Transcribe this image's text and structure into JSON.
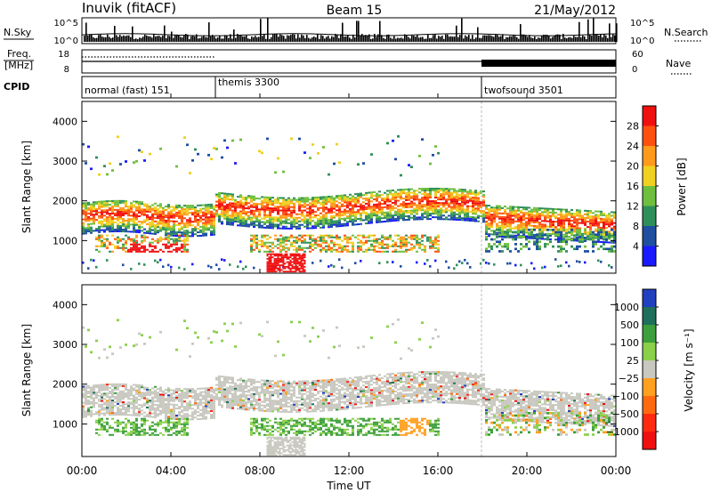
{
  "header": {
    "station": "Inuvik (fitACF)",
    "beam": "Beam 15",
    "date": "21/May/2012"
  },
  "nsky_panel": {
    "left_label": "N.Sky",
    "right_label": "N.Search",
    "left_ticks": [
      "10^5",
      "10^0"
    ],
    "right_ticks": [
      "10^5",
      "10^0"
    ]
  },
  "freq_panel": {
    "left_label_1": "Freq.",
    "left_label_2": "[MHz]",
    "right_label": "Nave",
    "left_ticks": [
      "18",
      "8"
    ],
    "right_ticks": [
      "60",
      "0"
    ]
  },
  "cpid_panel": {
    "label": "CPID",
    "modes": [
      {
        "name": "normal (fast) 151",
        "start_hour": 0
      },
      {
        "name": "themis 3300",
        "start_hour": 6
      },
      {
        "name": "twofsound 3501",
        "start_hour": 18
      }
    ]
  },
  "chart_data": [
    {
      "type": "heatmap",
      "panel": "power",
      "ylabel": "Slant Range [km]",
      "xlabel": "Time UT",
      "x_range_hours": [
        0,
        24
      ],
      "ylim": [
        180,
        4500
      ],
      "yticks": [
        "1000",
        "2000",
        "3000",
        "4000"
      ],
      "colorbar_label": "Power [dB]",
      "colorbar_ticks": [
        "4",
        "8",
        "12",
        "16",
        "20",
        "24",
        "28"
      ],
      "colorbar_colors": [
        "#1a1aff",
        "#1f4fa0",
        "#2f8f5a",
        "#6fbf3f",
        "#f0d020",
        "#ff9a1a",
        "#ff5010",
        "#f01010"
      ]
    },
    {
      "type": "heatmap",
      "panel": "velocity",
      "ylabel": "Slant Range [km]",
      "xlabel": "Time UT",
      "x_range_hours": [
        0,
        24
      ],
      "ylim": [
        180,
        4500
      ],
      "yticks": [
        "1000",
        "2000",
        "3000",
        "4000"
      ],
      "colorbar_label": "Velocity [m s⁻¹]",
      "colorbar_ticks": [
        "1000",
        "500",
        "100",
        "25",
        "−25",
        "−100",
        "−500",
        "−1000"
      ],
      "colorbar_colors": [
        "#2040c0",
        "#1f6f5a",
        "#3c9f3c",
        "#8ad04a",
        "#c8c8c0",
        "#ffa020",
        "#ff6a10",
        "#ff2a10",
        "#f01010"
      ]
    }
  ],
  "time_axis": {
    "ticks": [
      "00:00",
      "04:00",
      "08:00",
      "12:00",
      "16:00",
      "20:00",
      "00:00"
    ],
    "label": "Time UT"
  }
}
